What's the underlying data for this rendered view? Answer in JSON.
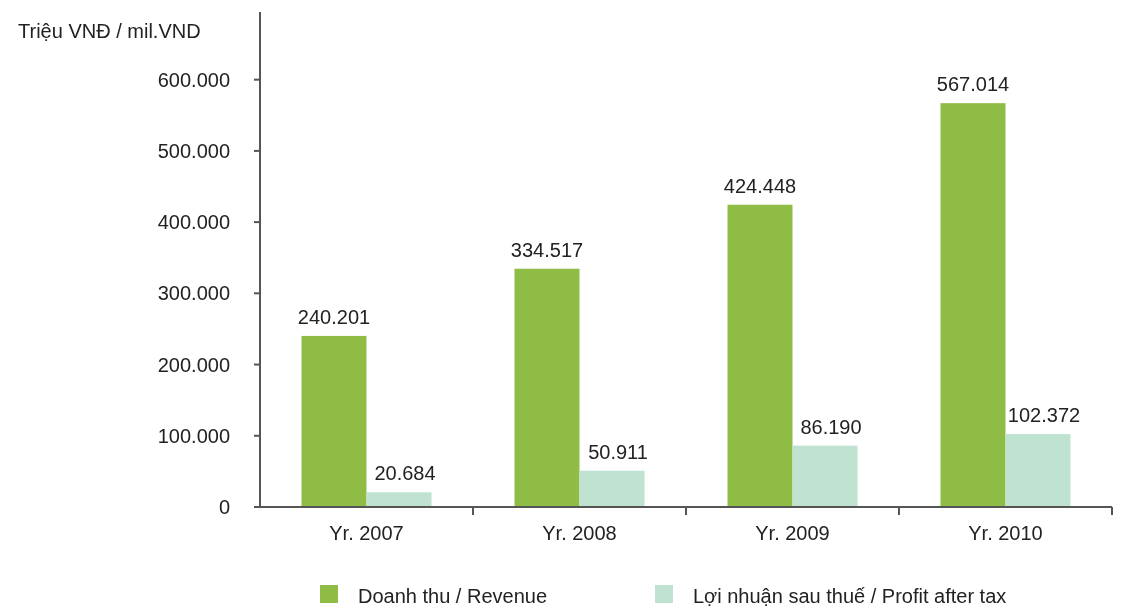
{
  "chart_data": {
    "type": "bar",
    "ylabel": "Triệu VNĐ / mil.VND",
    "categories": [
      "Yr. 2007",
      "Yr. 2008",
      "Yr. 2009",
      "Yr. 2010"
    ],
    "series": [
      {
        "name": "Doanh thu / Revenue",
        "color": "#8fbc45",
        "values": [
          240201,
          334517,
          424448,
          567014
        ],
        "value_labels": [
          "240.201",
          "334.517",
          "424.448",
          "567.014"
        ]
      },
      {
        "name": "Lợi nhuận sau thuế / Profit after tax",
        "color": "#bfe3d0",
        "values": [
          20684,
          50911,
          86190,
          102372
        ],
        "value_labels": [
          "20.684",
          "50.911",
          "86.190",
          "102.372"
        ]
      }
    ],
    "ylim": [
      0,
      695000
    ],
    "yticks": [
      {
        "value": 0,
        "label": "0"
      },
      {
        "value": 100000,
        "label": "100.000"
      },
      {
        "value": 200000,
        "label": "200.000"
      },
      {
        "value": 300000,
        "label": "300.000"
      },
      {
        "value": 400000,
        "label": "400.000"
      },
      {
        "value": 500000,
        "label": "500.000"
      },
      {
        "value": 600000,
        "label": "600.000"
      }
    ],
    "grid": false,
    "legend": "bottom"
  }
}
